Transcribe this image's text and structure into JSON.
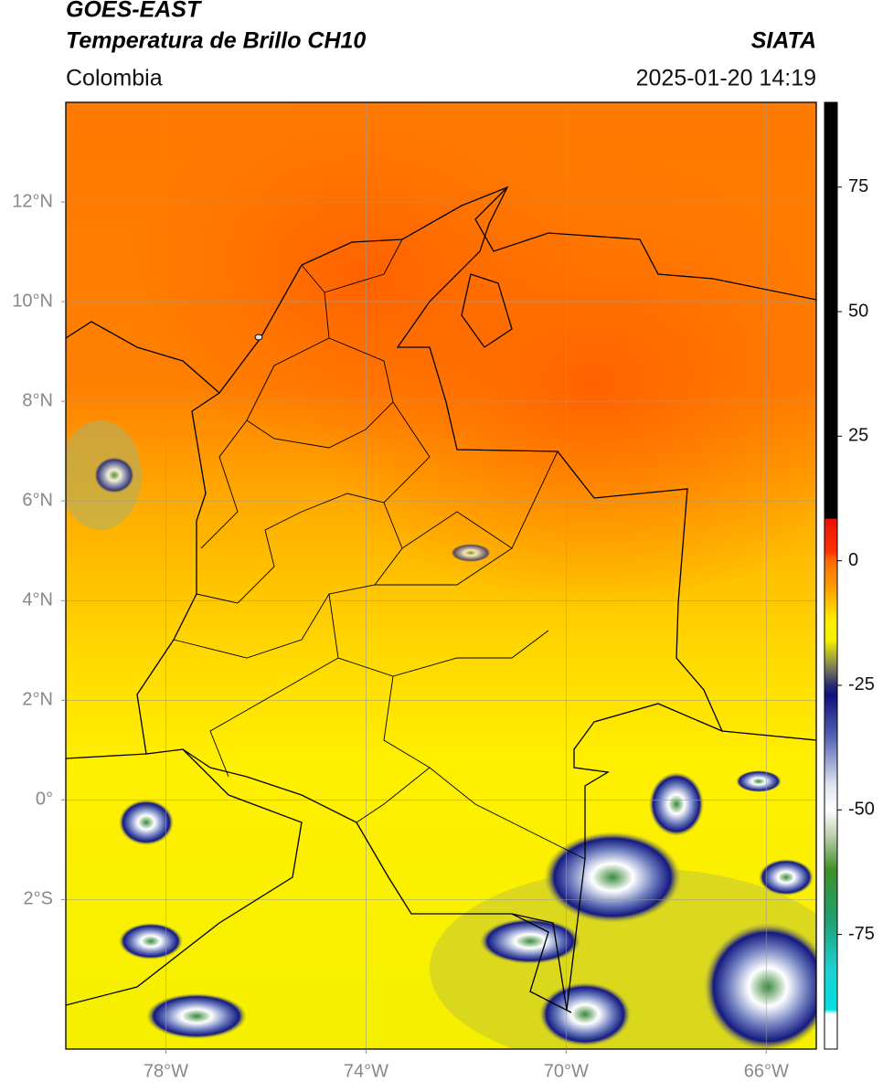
{
  "header": {
    "title": "GOES-EAST",
    "subtitle": "Temperatura de Brillo CH10",
    "region": "Colombia",
    "source": "SIATA",
    "timestamp": "2025-01-20 14:19"
  },
  "map": {
    "xlim": [
      -80,
      -65
    ],
    "ylim": [
      -5,
      14
    ],
    "grid": true,
    "xticks": [
      {
        "value": -78,
        "label": "78°W"
      },
      {
        "value": -74,
        "label": "74°W"
      },
      {
        "value": -70,
        "label": "70°W"
      },
      {
        "value": -66,
        "label": "66°W"
      }
    ],
    "yticks": [
      {
        "value": 12,
        "label": "12°N"
      },
      {
        "value": 10,
        "label": "10°N"
      },
      {
        "value": 8,
        "label": "8°N"
      },
      {
        "value": 6,
        "label": "6°N"
      },
      {
        "value": 4,
        "label": "4°N"
      },
      {
        "value": 2,
        "label": "2°N"
      },
      {
        "value": 0,
        "label": "0°"
      },
      {
        "value": -2,
        "label": "2°S"
      }
    ]
  },
  "colorbar": {
    "lim": [
      -98,
      92
    ],
    "ticks": [
      75,
      50,
      25,
      0,
      -25,
      -50,
      -75
    ],
    "stops": [
      {
        "value": 92,
        "color": "#000000"
      },
      {
        "value": 8.5,
        "color": "#000000"
      },
      {
        "value": 8.4,
        "color": "#e8100a"
      },
      {
        "value": 2,
        "color": "#ff3000"
      },
      {
        "value": 0,
        "color": "#ff6a00"
      },
      {
        "value": -5,
        "color": "#ff9a00"
      },
      {
        "value": -12,
        "color": "#ffee00"
      },
      {
        "value": -16,
        "color": "#f2f000"
      },
      {
        "value": -19,
        "color": "#b0b030"
      },
      {
        "value": -22,
        "color": "#707060"
      },
      {
        "value": -25,
        "color": "#2a2a70"
      },
      {
        "value": -27,
        "color": "#101080"
      },
      {
        "value": -35,
        "color": "#5060b0"
      },
      {
        "value": -45,
        "color": "#e0e4f0"
      },
      {
        "value": -50,
        "color": "#ffffff"
      },
      {
        "value": -55,
        "color": "#c0d0b0"
      },
      {
        "value": -62,
        "color": "#40902a"
      },
      {
        "value": -72,
        "color": "#20a070"
      },
      {
        "value": -82,
        "color": "#20d0d0"
      },
      {
        "value": -90,
        "color": "#00e0e0"
      },
      {
        "value": -91,
        "color": "#ffffff"
      },
      {
        "value": -98,
        "color": "#ffffff"
      }
    ]
  }
}
